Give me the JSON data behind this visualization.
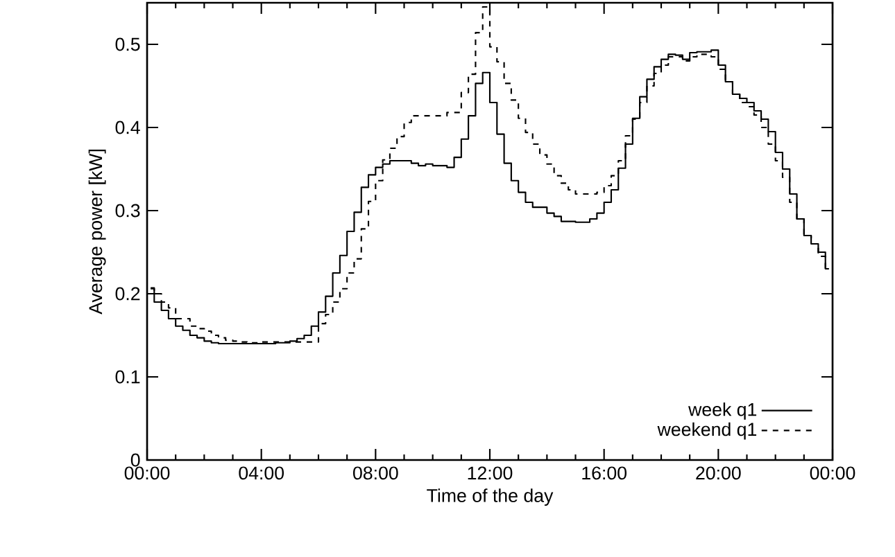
{
  "chart_data": {
    "type": "step",
    "xlabel": "Time of the day",
    "ylabel": "Average power [kW]",
    "x": [
      0.125,
      0.375,
      0.625,
      0.875,
      1.125,
      1.375,
      1.625,
      1.875,
      2.125,
      2.375,
      2.625,
      2.875,
      3.125,
      3.375,
      3.625,
      3.875,
      4.125,
      4.375,
      4.625,
      4.875,
      5.125,
      5.375,
      5.625,
      5.875,
      6.125,
      6.375,
      6.625,
      6.875,
      7.125,
      7.375,
      7.625,
      7.875,
      8.125,
      8.375,
      8.625,
      8.875,
      9.125,
      9.375,
      9.625,
      9.875,
      10.125,
      10.375,
      10.625,
      10.875,
      11.125,
      11.375,
      11.625,
      11.875,
      12.125,
      12.375,
      12.625,
      12.875,
      13.125,
      13.375,
      13.625,
      13.875,
      14.125,
      14.375,
      14.625,
      14.875,
      15.125,
      15.375,
      15.625,
      15.875,
      16.125,
      16.375,
      16.625,
      16.875,
      17.125,
      17.375,
      17.625,
      17.875,
      18.125,
      18.375,
      18.625,
      18.875,
      19.125,
      19.375,
      19.625,
      19.875,
      20.125,
      20.375,
      20.625,
      20.875,
      21.125,
      21.375,
      21.625,
      21.875,
      22.125,
      22.375,
      22.625,
      22.875,
      23.125,
      23.375,
      23.625,
      23.875
    ],
    "series": [
      {
        "name": "week q1",
        "color": "#000000",
        "line_style": "solid",
        "values": [
          0.207,
          0.19,
          0.18,
          0.17,
          0.161,
          0.156,
          0.15,
          0.147,
          0.143,
          0.141,
          0.14,
          0.14,
          0.14,
          0.14,
          0.14,
          0.14,
          0.14,
          0.14,
          0.141,
          0.141,
          0.143,
          0.146,
          0.15,
          0.161,
          0.178,
          0.197,
          0.225,
          0.246,
          0.275,
          0.298,
          0.328,
          0.343,
          0.352,
          0.356,
          0.36,
          0.36,
          0.36,
          0.357,
          0.354,
          0.356,
          0.354,
          0.354,
          0.352,
          0.364,
          0.386,
          0.414,
          0.453,
          0.466,
          0.43,
          0.392,
          0.357,
          0.336,
          0.322,
          0.31,
          0.304,
          0.304,
          0.297,
          0.293,
          0.287,
          0.287,
          0.286,
          0.286,
          0.29,
          0.297,
          0.31,
          0.325,
          0.351,
          0.38,
          0.411,
          0.437,
          0.458,
          0.473,
          0.482,
          0.488,
          0.487,
          0.482,
          0.49,
          0.491,
          0.491,
          0.493,
          0.475,
          0.455,
          0.44,
          0.435,
          0.43,
          0.42,
          0.41,
          0.395,
          0.37,
          0.35,
          0.32,
          0.29,
          0.27,
          0.26,
          0.25,
          0.23
        ]
      },
      {
        "name": "weekend q1",
        "color": "#000000",
        "line_style": "dashed",
        "values": [
          0.206,
          0.2,
          0.19,
          0.183,
          0.17,
          0.17,
          0.161,
          0.158,
          0.155,
          0.15,
          0.147,
          0.144,
          0.143,
          0.142,
          0.141,
          0.141,
          0.142,
          0.142,
          0.142,
          0.142,
          0.142,
          0.142,
          0.142,
          0.142,
          0.164,
          0.175,
          0.19,
          0.206,
          0.225,
          0.242,
          0.278,
          0.311,
          0.336,
          0.361,
          0.375,
          0.389,
          0.406,
          0.414,
          0.414,
          0.414,
          0.414,
          0.414,
          0.418,
          0.418,
          0.442,
          0.464,
          0.514,
          0.545,
          0.497,
          0.479,
          0.453,
          0.433,
          0.411,
          0.394,
          0.38,
          0.367,
          0.356,
          0.342,
          0.333,
          0.325,
          0.32,
          0.32,
          0.32,
          0.322,
          0.33,
          0.342,
          0.36,
          0.39,
          0.41,
          0.43,
          0.45,
          0.465,
          0.475,
          0.485,
          0.485,
          0.48,
          0.485,
          0.488,
          0.488,
          0.485,
          0.47,
          0.455,
          0.44,
          0.43,
          0.425,
          0.415,
          0.4,
          0.38,
          0.36,
          0.34,
          0.31,
          0.29,
          0.27,
          0.26,
          0.245,
          0.23
        ]
      }
    ],
    "xlim": [
      0,
      24
    ],
    "ylim": [
      0,
      0.55
    ],
    "xticks": [
      {
        "value": 0,
        "label": "00:00"
      },
      {
        "value": 4,
        "label": "04:00"
      },
      {
        "value": 8,
        "label": "08:00"
      },
      {
        "value": 12,
        "label": "12:00"
      },
      {
        "value": 16,
        "label": "16:00"
      },
      {
        "value": 20,
        "label": "20:00"
      },
      {
        "value": 24,
        "label": "00:00"
      }
    ],
    "yticks": [
      0,
      0.1,
      0.2,
      0.3,
      0.4,
      0.5
    ],
    "legend": "bottom right",
    "grid": false,
    "marker": "none"
  }
}
